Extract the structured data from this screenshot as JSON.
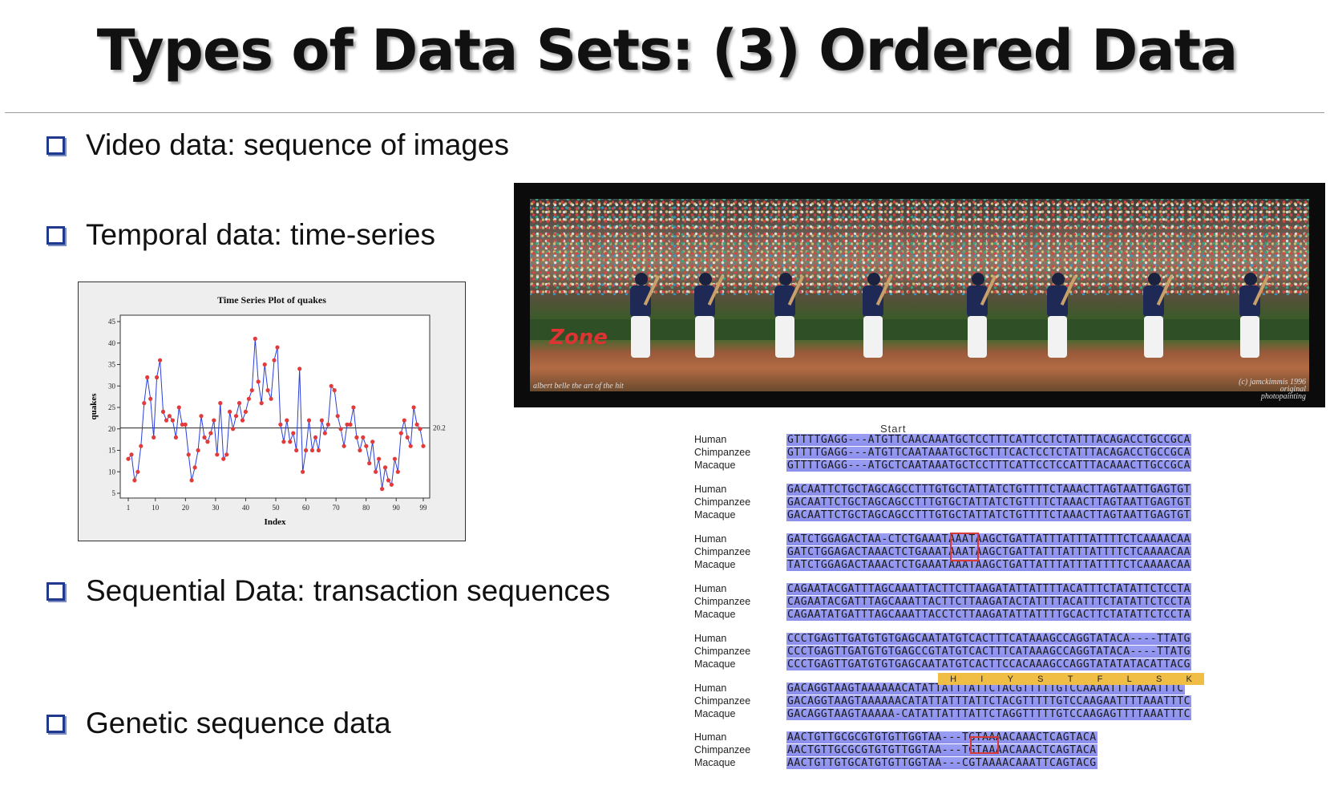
{
  "title": "Types of Data Sets: (3) Ordered Data",
  "bullets": [
    "Video data: sequence of images",
    "Temporal data: time-series",
    "Sequential Data: transaction sequences",
    "Genetic sequence data"
  ],
  "chart_data": {
    "type": "line",
    "title": "Time Series Plot of quakes",
    "xlabel": "Index",
    "ylabel": "quakes",
    "x_ticks": [
      "1",
      "10",
      "20",
      "30",
      "40",
      "50",
      "60",
      "70",
      "80",
      "90",
      "99"
    ],
    "y_ticks": [
      "5",
      "10",
      "15",
      "20",
      "25",
      "30",
      "35",
      "40",
      "45"
    ],
    "xlim": [
      1,
      99
    ],
    "ylim": [
      5,
      45
    ],
    "reference_line": {
      "value": 20.2,
      "label": "20.2"
    },
    "values": [
      13,
      14,
      8,
      10,
      16,
      26,
      32,
      27,
      18,
      32,
      36,
      24,
      22,
      23,
      22,
      18,
      25,
      21,
      21,
      14,
      8,
      11,
      15,
      23,
      18,
      17,
      19,
      22,
      14,
      26,
      13,
      14,
      24,
      20,
      23,
      26,
      22,
      24,
      27,
      29,
      41,
      31,
      26,
      35,
      29,
      27,
      36,
      39,
      21,
      17,
      22,
      17,
      19,
      15,
      34,
      10,
      15,
      22,
      15,
      18,
      15,
      22,
      19,
      21,
      30,
      29,
      23,
      20,
      16,
      21,
      21,
      25,
      18,
      15,
      18,
      16,
      12,
      17,
      10,
      13,
      6,
      11,
      8,
      7,
      13,
      10,
      19,
      22,
      18,
      16,
      25,
      21,
      20,
      16
    ],
    "marker_color": "#e23b3b",
    "line_color": "#2a3fd8",
    "grid": false
  },
  "video_caption_left": "albert belle the art of the hit",
  "video_caption_right": "(c) jamckimmis 1996 original photopainting",
  "video_logo": "Zone",
  "genetic": {
    "start_label": "Start",
    "species": [
      "Human",
      "Chimpanzee",
      "Macaque"
    ],
    "blocks": [
      [
        "GTTTTGAGG---ATGTTCAACAAATGCTCCTTTCATTCCTCTATTTACAGACCTGCCGCA",
        "GTTTTGAGG---ATGTTCAATAAATGCTGCTTTCACTCCTCTATTTACAGACCTGCCGCA",
        "GTTTTGAGG---ATGCTCAATAAATGCTCCTTTCATTCCTCCATTTACAAACTTGCCGCA"
      ],
      [
        "GACAATTCTGCTAGCAGCCTTTGTGCTATTATCTGTTTTCTAAACTTAGTAATTGAGTGT",
        "GACAATTCTGCTAGCAGCCTTTGTGCTATTATCTGTTTTCTAAACTTAGTAATTGAGTGT",
        "GACAATTCTGCTAGCAGCCTTTGTGCTATTATCTGTTTTCTAAACTTAGTAATTGAGTGT"
      ],
      [
        "GATCTGGAGACTAA-CTCTGAAATAAATAAGCTGATTATTTATTTATTTTCTCAAAACAA",
        "GATCTGGAGACTAAACTCTGAAATAAATAAGCTGATTATTTATTTATTTTCTCAAAACAA",
        "TATCTGGAGACTAAACTCTGAAATAAATAAGCTGATTATTTATTTATTTTCTCAAAACAA"
      ],
      [
        "CAGAATACGATTTAGCAAATTACTTCTTAAGATATTATTTTACATTTCTATATTCTCCTA",
        "CAGAATACGATTTAGCAAATTACTTCTTAAGATACTATTTTACATTTCTATATTCTCCTA",
        "CAGAATATGATTTAGCAAATTACCTCTTAAGATATTATTTTGCACTTCTATATTCTCCTA"
      ],
      [
        "CCCTGAGTTGATGTGTGAGCAATATGTCACTTTCATAAAGCCAGGTATACA----TTATG",
        "CCCTGAGTTGATGTGTGAGCCGTATGTCACTTTCATAAAGCCAGGTATACA----TTATG",
        "CCCTGAGTTGATGTGTGAGCAATATGTCACTTCCACAAAGCCAGGTATATATACATTACG"
      ],
      [
        "GACAGGTAAGTAAAAAACATATTATTTATTCTACGTTTTTGTCCAAAATTTTAAATTTC",
        "GACAGGTAAGTAAAAAACATATTATTTATTCTACGTTTTTGTCCAAGAATTTTAAATTTC",
        "GACAGGTAAGTAAAAA-CATATTATTTATTCTAGGTTTTTGTCCAAGAGTTTTAAATTTC"
      ],
      [
        "AACTGTTGCGCGTGTGTTGGTAA---TGTAAAACAAACTCAGTACA",
        "AACTGTTGCGCGTGTGTTGGTAA---TGTAAAACAAACTCAGTACA",
        "AACTGTTGTGCATGTGTTGGTAA---CGTAAAACAAATTCAGTACG"
      ]
    ],
    "amino_acids": [
      "H",
      "I",
      "Y",
      "S",
      "T",
      "F",
      "L",
      "S",
      "K"
    ]
  }
}
